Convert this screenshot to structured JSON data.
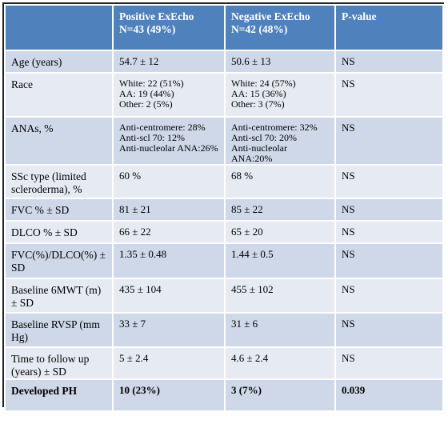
{
  "table": {
    "header": [
      [],
      [
        "Positive ExEcho",
        "N=43 (49%)"
      ],
      [
        "Negative ExEcho",
        "N=42 (48%)"
      ],
      [
        "P-value"
      ]
    ],
    "rows": [
      [
        [
          "Age (years)"
        ],
        [
          "54.7 ± 12"
        ],
        [
          "50.6 ± 13"
        ],
        [
          "NS"
        ]
      ],
      [
        [
          "Race"
        ],
        [
          "White: 22 (51%)",
          "AA: 19 (44%)",
          "Other: 2 (5%)"
        ],
        [
          "White: 24 (57%)",
          "AA: 15 (36%)",
          "Other: 3 (7%)"
        ],
        [
          "NS"
        ]
      ],
      [
        [
          "ANAs, %"
        ],
        [
          "Anti-centromere: 28%",
          "Anti-scl 70: 12%",
          "Anti-nucleolar ANA:26%"
        ],
        [
          "Anti-centromere: 32%",
          "Anti-scl 70: 20%",
          "Anti-nucleolar ANA:20%"
        ],
        [
          "NS"
        ]
      ],
      [
        [
          "SSc type (limited scleroderma), %"
        ],
        [
          "60 %"
        ],
        [
          "68 %"
        ],
        [
          "NS"
        ]
      ],
      [
        [
          "FVC % ± SD"
        ],
        [
          "81 ± 21"
        ],
        [
          "85 ± 22"
        ],
        [
          "NS"
        ]
      ],
      [
        [
          "DLCO % ± SD"
        ],
        [
          "66 ± 22"
        ],
        [
          "65 ± 20"
        ],
        [
          "NS"
        ]
      ],
      [
        [
          "FVC(%)/DLCO(%) ± SD"
        ],
        [
          "1.35 ± 0.48"
        ],
        [
          "1.44 ± 0.5"
        ],
        [
          "NS"
        ]
      ],
      [
        [
          "Baseline 6MWT (m) ± SD"
        ],
        [
          "435 ± 104"
        ],
        [
          "455 ± 102"
        ],
        [
          "NS"
        ]
      ],
      [
        [
          "Baseline RVSP (mm Hg)"
        ],
        [
          "33 ± 7"
        ],
        [
          "31 ± 6"
        ],
        [
          "NS"
        ]
      ],
      [
        [
          "Time to follow up (years) ± SD"
        ],
        [
          "5 ± 2.4"
        ],
        [
          "4.6 ± 2.4"
        ],
        [
          "NS"
        ]
      ],
      [
        [
          "Developed PH"
        ],
        [
          "10 (23%)"
        ],
        [
          "3 (7%)"
        ],
        [
          "0.039"
        ]
      ]
    ]
  }
}
